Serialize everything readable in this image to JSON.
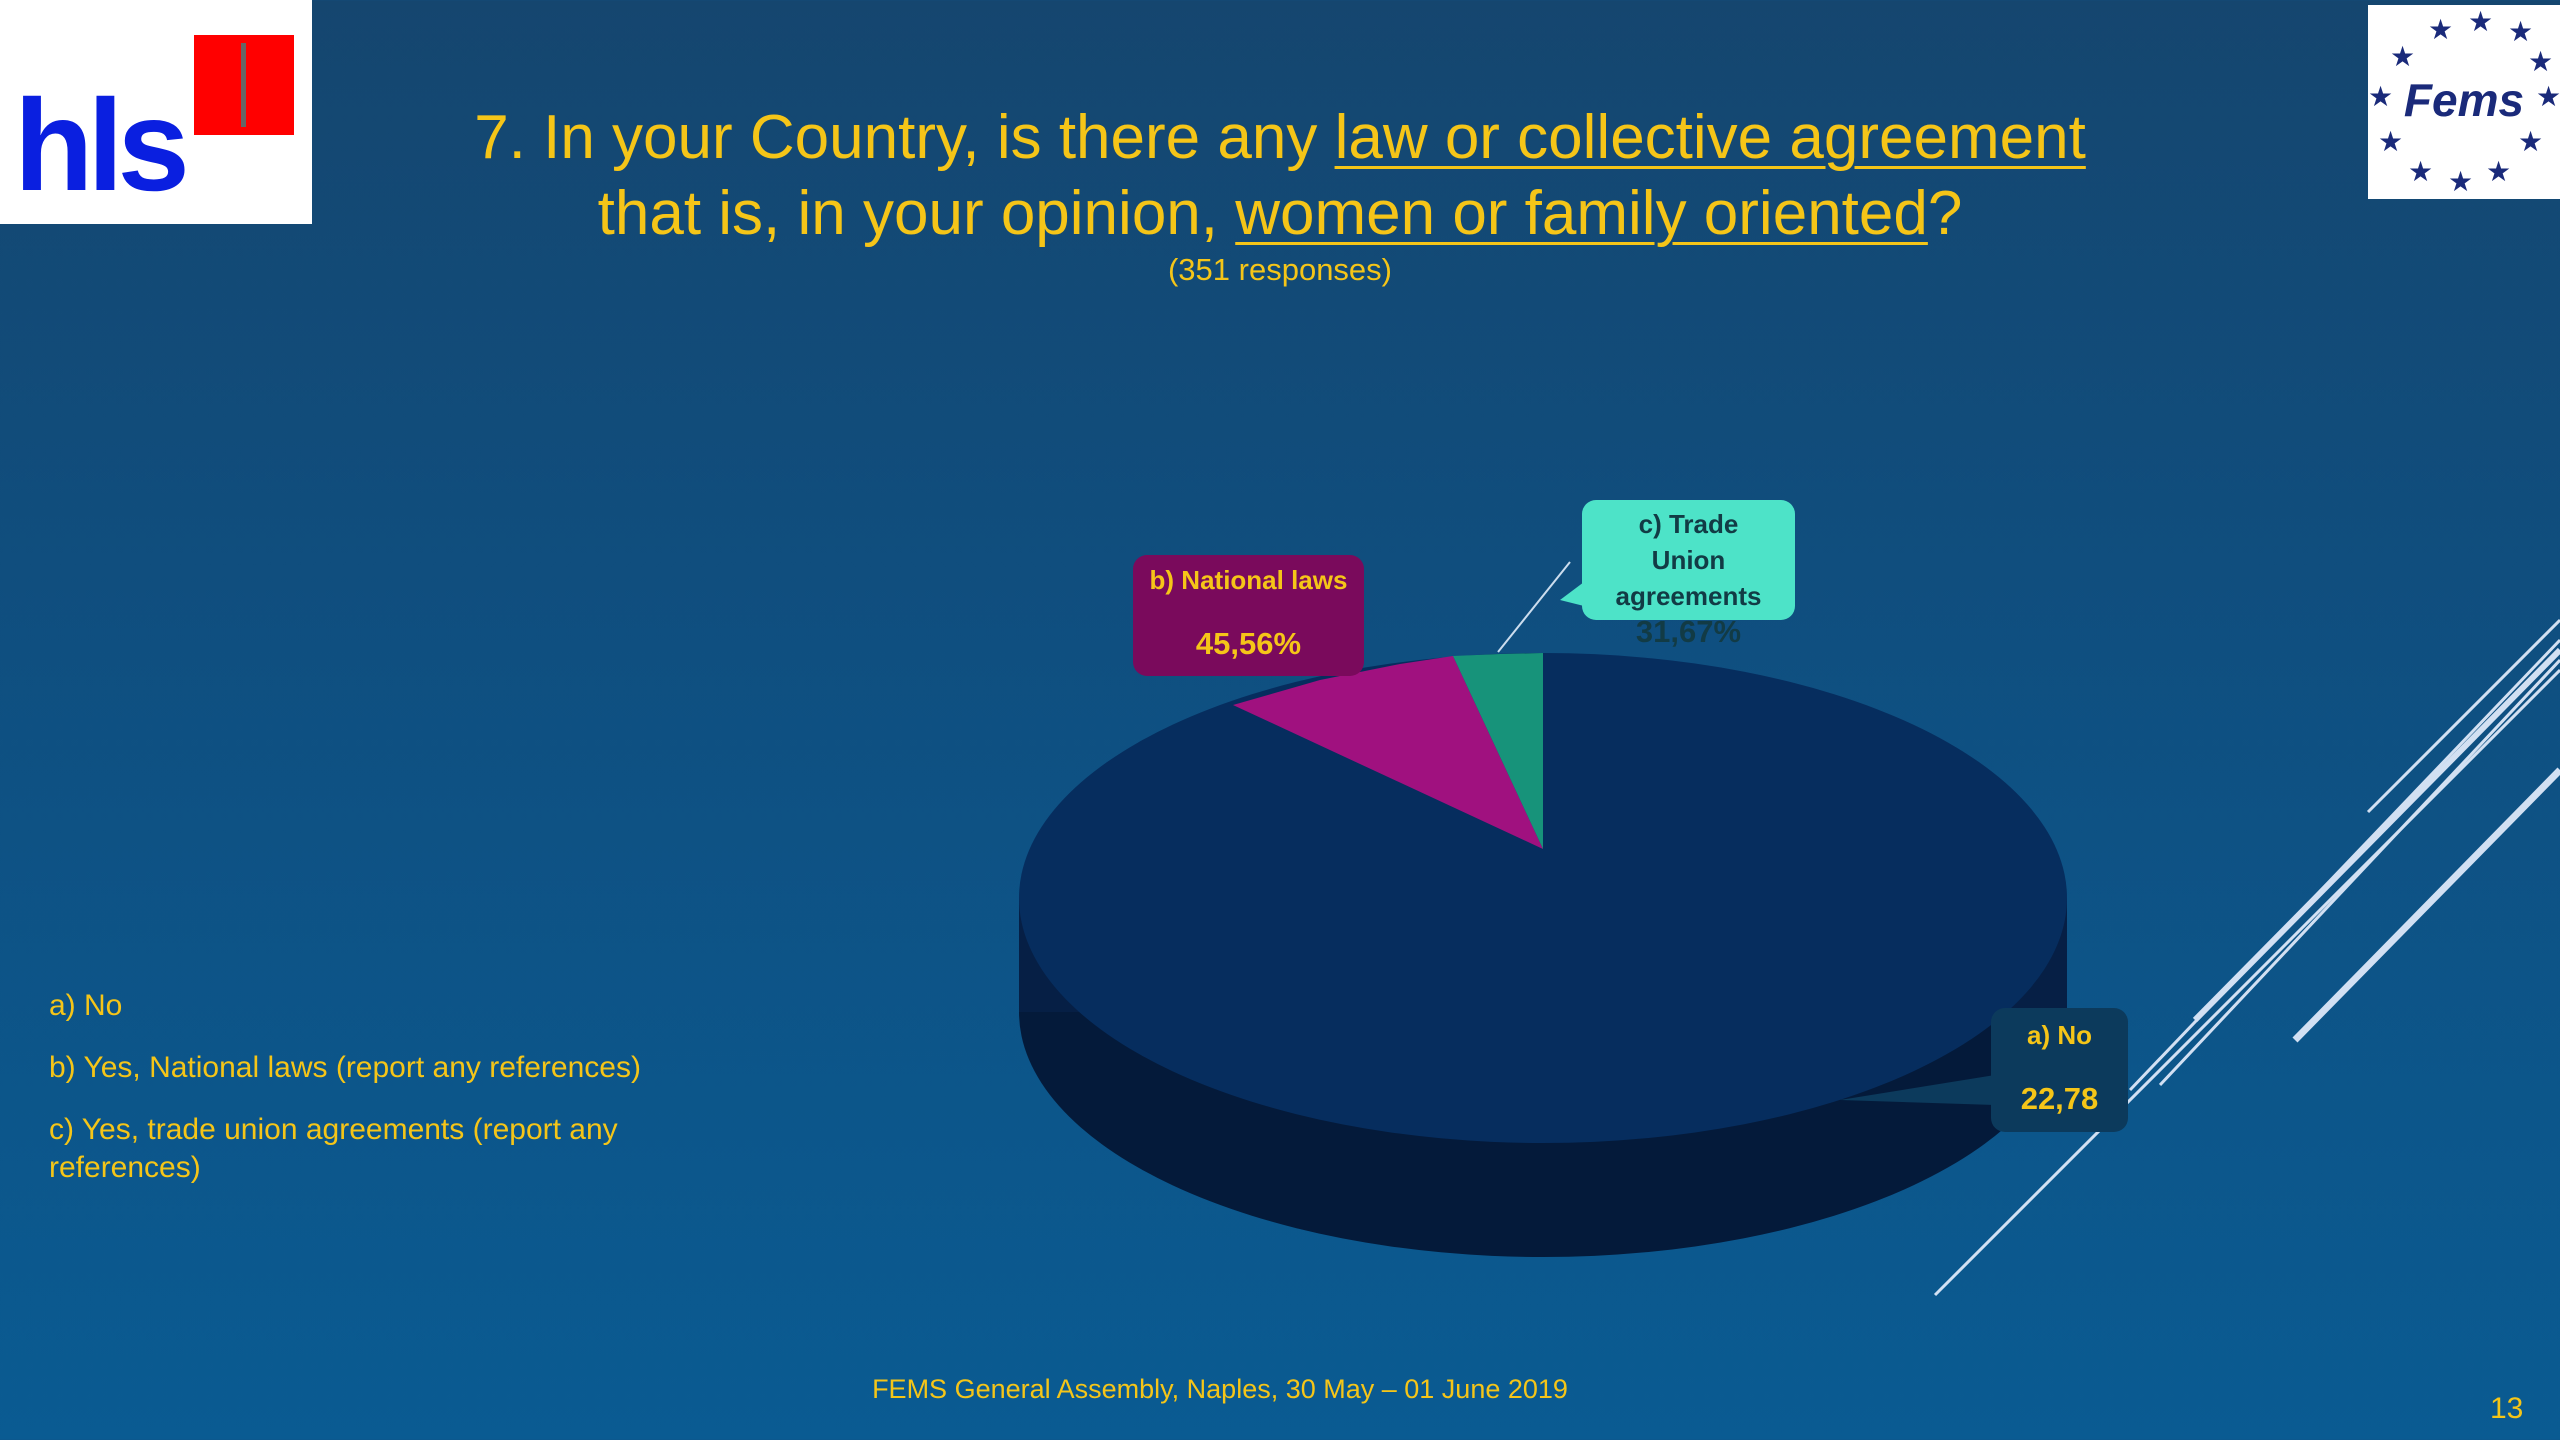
{
  "logos": {
    "left": "hls",
    "right": "Fems"
  },
  "title": {
    "line1_pre": "7. In your Country, is there any ",
    "line1_link": "law or collective agreement",
    "line2_pre": "that is, in your opinion, ",
    "line2_link": "women or family oriented",
    "line2_post": "?",
    "responses": "(351 responses)"
  },
  "legend": [
    "a) No",
    "b) Yes, National laws (report any references)",
    "c) Yes, trade union agreements (report any references)"
  ],
  "chart_data": {
    "type": "pie",
    "style": "3d",
    "categories": [
      "a) No",
      "b) National laws",
      "c) Trade Union agreements"
    ],
    "labels": [
      {
        "name": "a) No",
        "value": "22,78"
      },
      {
        "name": "b) National laws",
        "value": "45,56%"
      },
      {
        "name": "c) Trade Union agreements",
        "value": "31,67%"
      }
    ],
    "values": [
      22.78,
      45.56,
      31.67
    ],
    "colors": [
      "#062d5e",
      "#a0117f",
      "#17937a"
    ],
    "label_colors": [
      "#0c3a5c",
      "#7a0a5c",
      "#4de3c8"
    ]
  },
  "footer": "FEMS General Assembly, Naples, 30 May – 01 June 2019",
  "page_number": "13"
}
